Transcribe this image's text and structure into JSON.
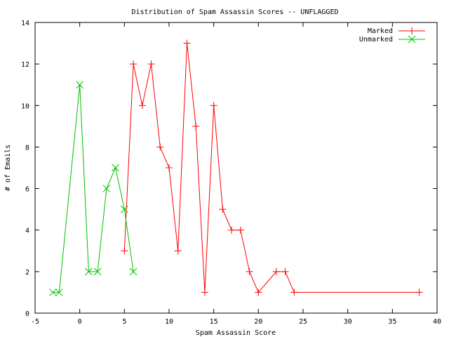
{
  "chart_data": {
    "type": "line",
    "title": "Distribution of Spam Assassin Scores -- UNFLAGGED",
    "xlabel": "Spam Assassin Score",
    "ylabel": "# of Emails",
    "xlim": [
      -5,
      40
    ],
    "ylim": [
      0,
      14
    ],
    "xticks": [
      -5,
      0,
      5,
      10,
      15,
      20,
      25,
      30,
      35,
      40
    ],
    "yticks": [
      0,
      2,
      4,
      6,
      8,
      10,
      12,
      14
    ],
    "grid": false,
    "legend": "top-right",
    "series": [
      {
        "name": "Marked",
        "color": "#ff0000",
        "marker": "plus",
        "x": [
          5,
          6,
          7,
          8,
          9,
          10,
          11,
          12,
          13,
          14,
          15,
          16,
          17,
          18,
          19,
          20,
          22,
          23,
          24,
          38
        ],
        "y": [
          3,
          12,
          10,
          12,
          8,
          7,
          3,
          13,
          9,
          1,
          10,
          5,
          4,
          4,
          2,
          1,
          2,
          2,
          1,
          1
        ]
      },
      {
        "name": "Unmarked",
        "color": "#00c000",
        "marker": "x",
        "x": [
          -3,
          -2.3,
          0,
          1,
          2,
          3,
          4,
          5,
          6
        ],
        "y": [
          1,
          1,
          11,
          2,
          2,
          6,
          7,
          5,
          2
        ]
      }
    ]
  }
}
